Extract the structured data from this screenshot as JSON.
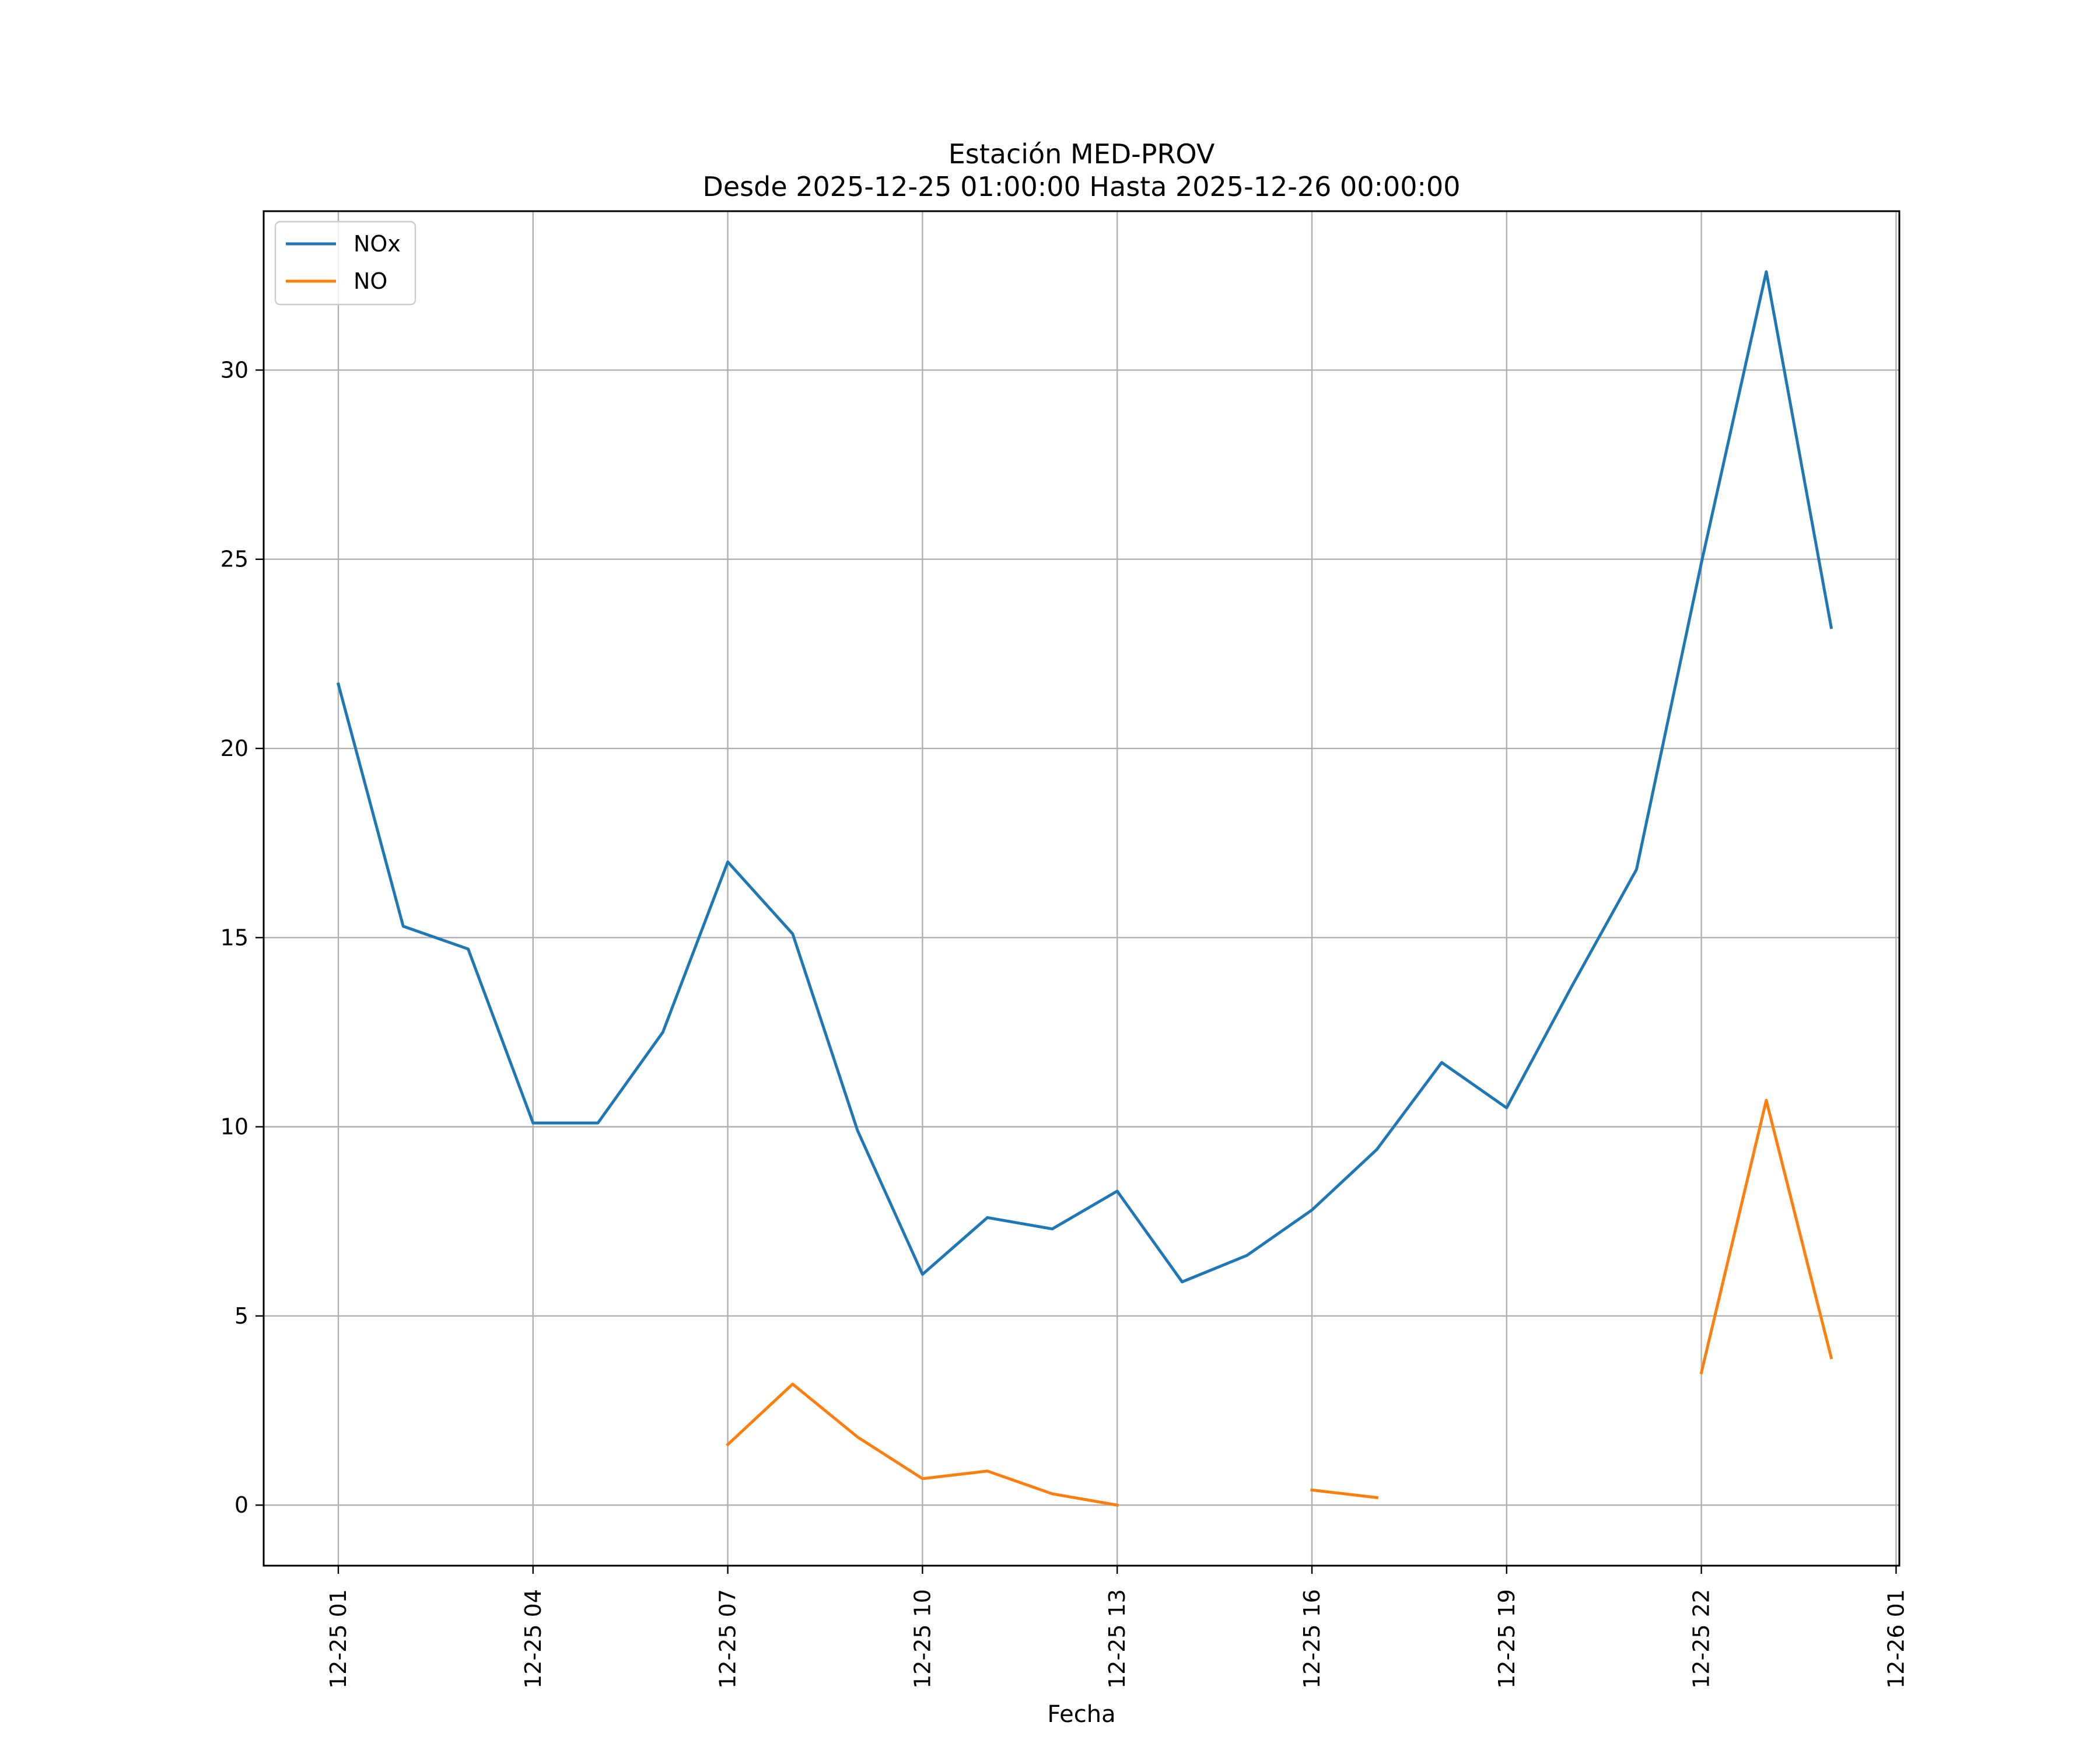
{
  "chart_data": {
    "type": "line",
    "title": "Estación MED-PROV",
    "subtitle": "Desde 2025-12-25 01:00:00 Hasta 2025-12-26 00:00:00",
    "xlabel": "Fecha",
    "ylabel": "",
    "grid": true,
    "legend_position": "top-left",
    "x_hours": [
      1,
      2,
      3,
      4,
      5,
      6,
      7,
      8,
      9,
      10,
      11,
      12,
      13,
      14,
      15,
      16,
      17,
      18,
      19,
      20,
      21,
      22,
      23,
      24
    ],
    "xlim": [
      -0.15,
      25.05
    ],
    "ylim": [
      -1.6,
      34.2
    ],
    "x_ticks": [
      {
        "hour": 1,
        "label": "12-25 01"
      },
      {
        "hour": 4,
        "label": "12-25 04"
      },
      {
        "hour": 7,
        "label": "12-25 07"
      },
      {
        "hour": 10,
        "label": "12-25 10"
      },
      {
        "hour": 13,
        "label": "12-25 13"
      },
      {
        "hour": 16,
        "label": "12-25 16"
      },
      {
        "hour": 19,
        "label": "12-25 19"
      },
      {
        "hour": 22,
        "label": "12-25 22"
      },
      {
        "hour": 25,
        "label": "12-26 01"
      }
    ],
    "y_ticks": [
      {
        "value": 0,
        "label": "0"
      },
      {
        "value": 5,
        "label": "5"
      },
      {
        "value": 10,
        "label": "10"
      },
      {
        "value": 15,
        "label": "15"
      },
      {
        "value": 20,
        "label": "20"
      },
      {
        "value": 25,
        "label": "25"
      },
      {
        "value": 30,
        "label": "30"
      }
    ],
    "series": [
      {
        "name": "NOx",
        "color": "#1f77b4",
        "values": [
          21.7,
          15.3,
          14.7,
          10.1,
          10.1,
          12.5,
          17.0,
          15.1,
          9.9,
          6.1,
          7.6,
          7.3,
          8.3,
          5.9,
          6.6,
          7.8,
          9.4,
          11.7,
          10.5,
          13.7,
          16.8,
          24.9,
          32.6,
          23.2
        ]
      },
      {
        "name": "NO",
        "color": "#ff7f0e",
        "values": [
          null,
          null,
          null,
          null,
          null,
          null,
          1.6,
          3.2,
          1.8,
          0.7,
          0.9,
          0.3,
          0.0,
          null,
          null,
          0.4,
          0.2,
          null,
          null,
          null,
          null,
          3.5,
          10.7,
          3.9
        ]
      }
    ]
  }
}
